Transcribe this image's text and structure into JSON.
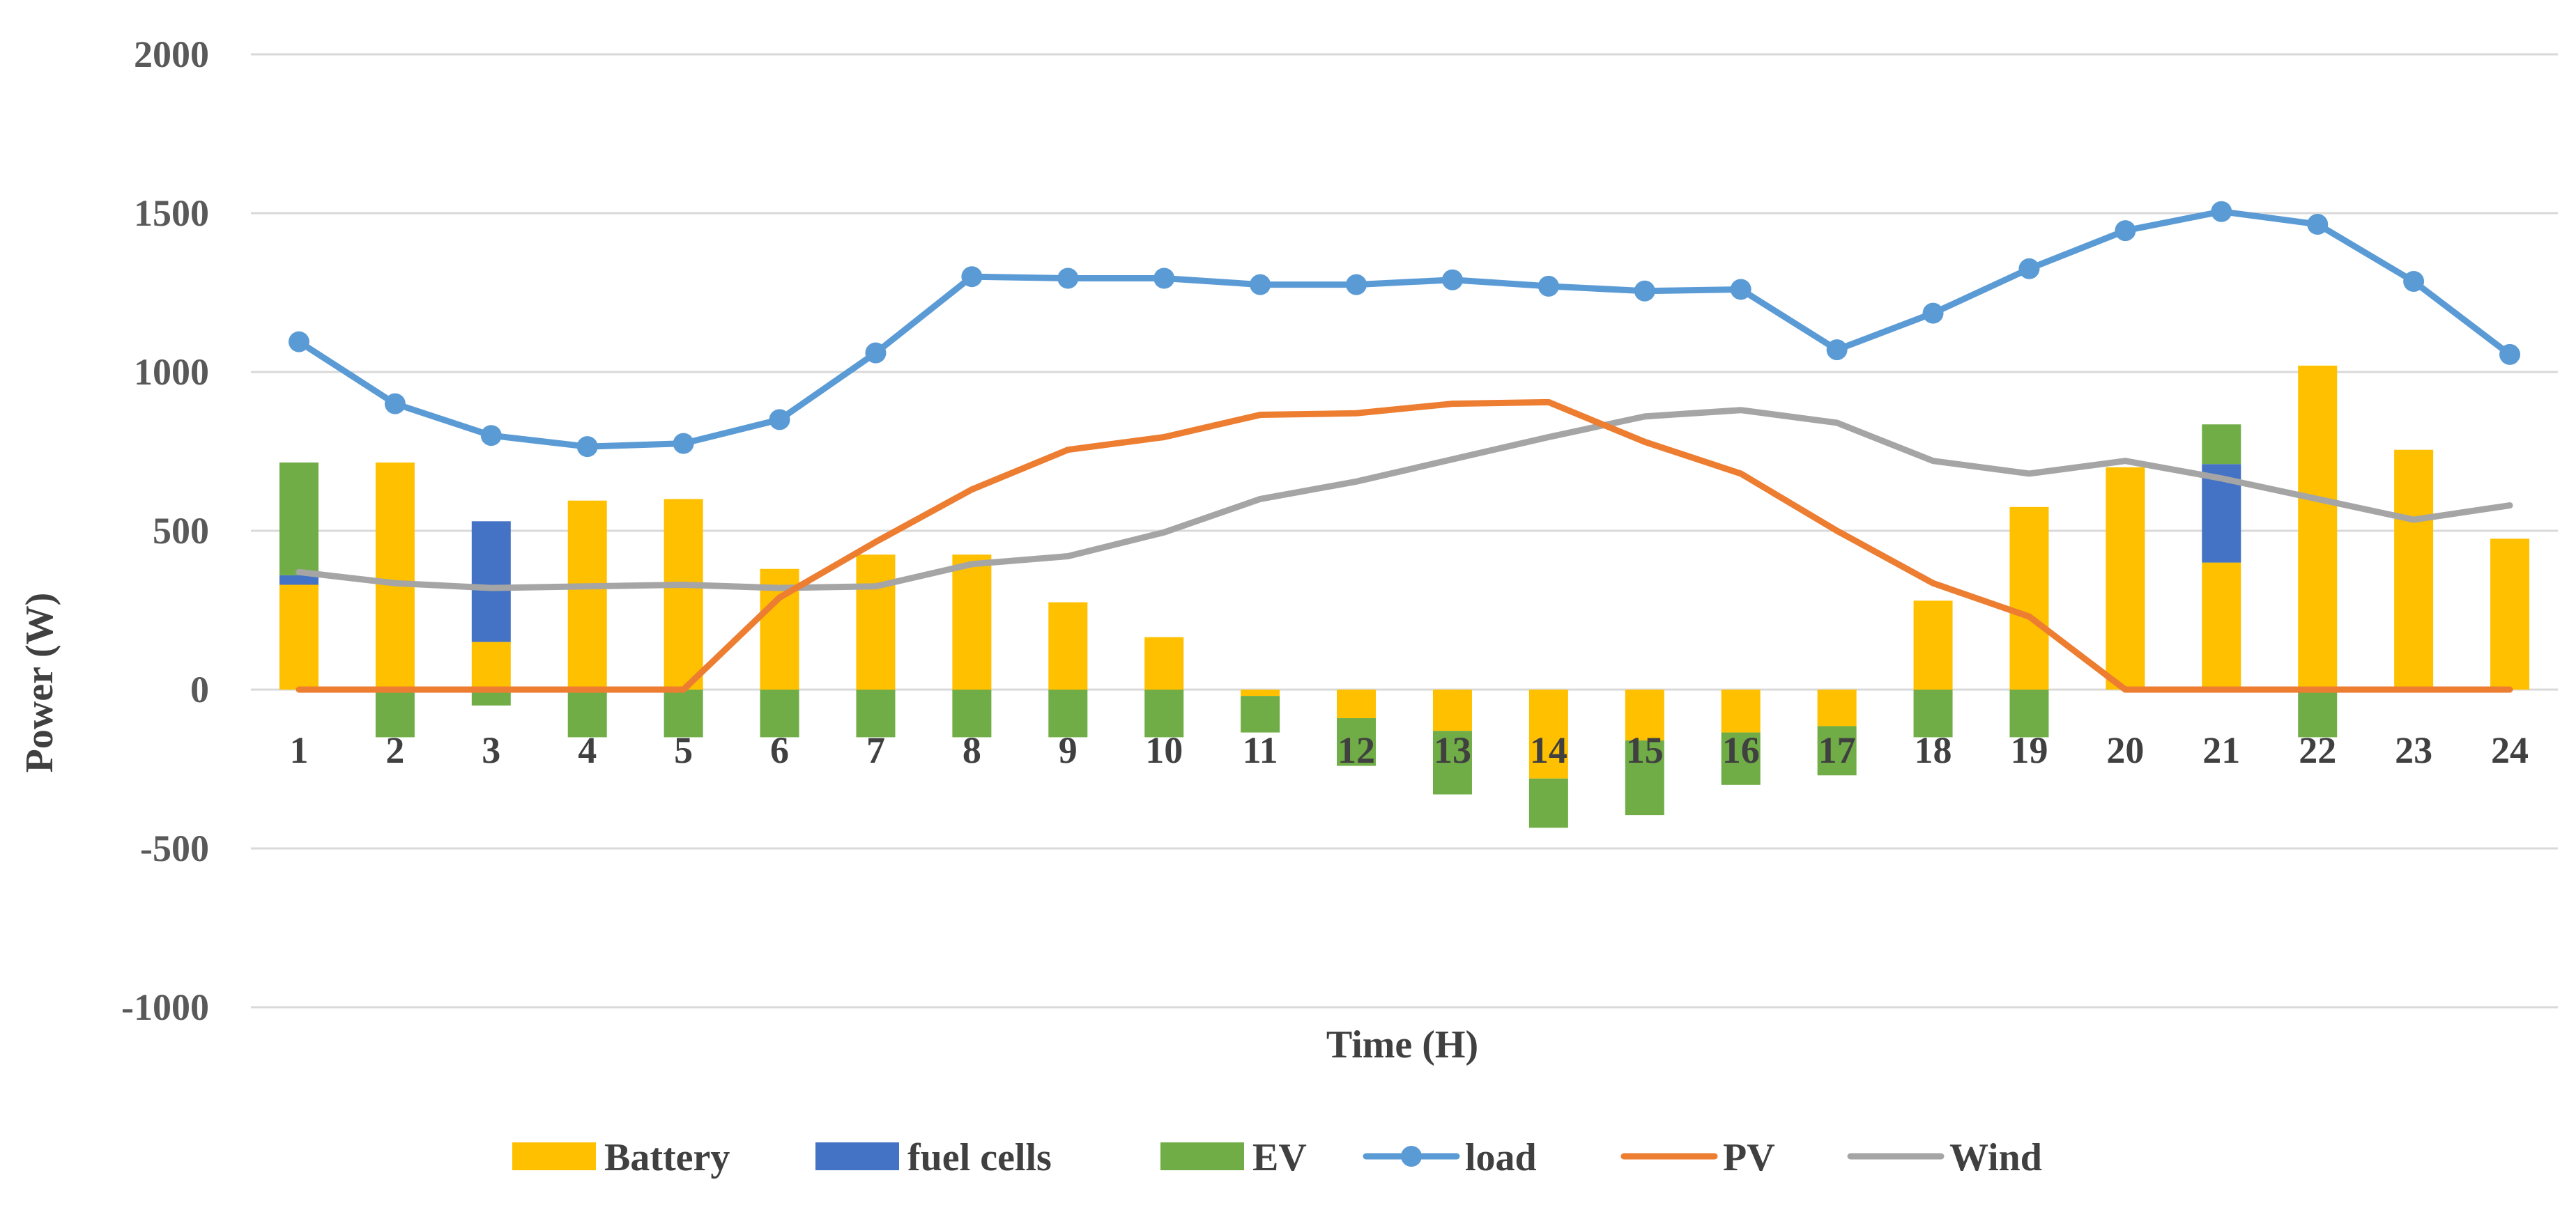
{
  "chart_data": {
    "type": "bar",
    "title": "",
    "xlabel": "Time (H)",
    "ylabel": "Power (W)",
    "ylim": [
      -1000,
      2000
    ],
    "yticks": [
      "2000",
      "1500",
      "1000",
      "500",
      "0",
      "-500",
      "-1000"
    ],
    "ytick_values": [
      2000,
      1500,
      1000,
      500,
      0,
      -500,
      -1000
    ],
    "grid": true,
    "legend_position": "bottom",
    "categories": [
      "1",
      "2",
      "3",
      "4",
      "5",
      "6",
      "7",
      "8",
      "9",
      "10",
      "11",
      "12",
      "13",
      "14",
      "15",
      "16",
      "17",
      "18",
      "19",
      "20",
      "21",
      "22",
      "23",
      "24"
    ],
    "bar_series": [
      {
        "name": "Battery",
        "color": "#FFC000",
        "values": [
          330,
          715,
          150,
          595,
          600,
          380,
          425,
          425,
          275,
          165,
          -20,
          -90,
          -130,
          -280,
          -160,
          -135,
          -115,
          280,
          575,
          700,
          400,
          1020,
          755,
          475
        ]
      },
      {
        "name": "fuel cells",
        "color": "#4472C4",
        "values": [
          30,
          0,
          380,
          0,
          0,
          0,
          0,
          0,
          0,
          0,
          0,
          0,
          0,
          0,
          0,
          0,
          0,
          0,
          0,
          0,
          310,
          0,
          0,
          0
        ]
      },
      {
        "name": "EV",
        "color": "#70AD47",
        "values": [
          355,
          -150,
          -50,
          -150,
          -150,
          -150,
          -150,
          -150,
          -150,
          -150,
          -115,
          -150,
          -200,
          -155,
          -235,
          -165,
          -155,
          -150,
          -150,
          0,
          125,
          -150,
          0,
          0
        ]
      }
    ],
    "line_series": [
      {
        "name": "load",
        "color": "#5B9BD5",
        "markers": true,
        "values": [
          1095,
          900,
          800,
          765,
          775,
          850,
          1060,
          1300,
          1295,
          1295,
          1275,
          1275,
          1290,
          1270,
          1255,
          1260,
          1070,
          1185,
          1325,
          1445,
          1505,
          1465,
          1285,
          1055
        ]
      },
      {
        "name": "PV",
        "color": "#ED7D31",
        "markers": false,
        "values": [
          0,
          0,
          0,
          0,
          0,
          290,
          465,
          630,
          755,
          795,
          865,
          870,
          900,
          905,
          780,
          680,
          500,
          335,
          230,
          0,
          0,
          0,
          0,
          0
        ]
      },
      {
        "name": "Wind",
        "color": "#A5A5A5",
        "markers": false,
        "values": [
          370,
          335,
          320,
          325,
          330,
          320,
          325,
          395,
          420,
          495,
          600,
          655,
          725,
          795,
          860,
          880,
          840,
          720,
          680,
          720,
          665,
          600,
          535,
          580
        ]
      }
    ],
    "legend": [
      "Battery",
      "fuel cells",
      "EV",
      "load",
      "PV",
      "Wind"
    ]
  }
}
